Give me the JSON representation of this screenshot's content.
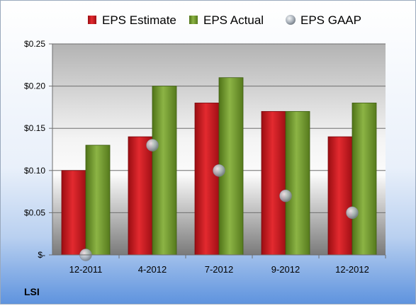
{
  "chart_data": {
    "type": "bar",
    "title": "",
    "company": "LSI",
    "categories": [
      "12-2011",
      "4-2012",
      "7-2012",
      "9-2012",
      "12-2012"
    ],
    "series": [
      {
        "name": "EPS Estimate",
        "kind": "bar",
        "color": "#c8141c",
        "values": [
          0.1,
          0.14,
          0.18,
          0.17,
          0.14
        ]
      },
      {
        "name": "EPS Actual",
        "kind": "bar",
        "color": "#6f9a2a",
        "values": [
          0.13,
          0.2,
          0.21,
          0.17,
          0.18
        ]
      },
      {
        "name": "EPS GAAP",
        "kind": "marker",
        "color": "#a9b3bf",
        "values": [
          0.0,
          0.13,
          0.1,
          0.07,
          0.05
        ]
      }
    ],
    "y_ticks": [
      {
        "value": 0.25,
        "label": "$0.25"
      },
      {
        "value": 0.2,
        "label": "$0.20"
      },
      {
        "value": 0.15,
        "label": "$0.15"
      },
      {
        "value": 0.1,
        "label": "$0.10"
      },
      {
        "value": 0.05,
        "label": "$0.05"
      },
      {
        "value": 0,
        "label": "$-"
      }
    ],
    "ylim": [
      0,
      0.25
    ],
    "grid": true,
    "legend_position": "top"
  }
}
